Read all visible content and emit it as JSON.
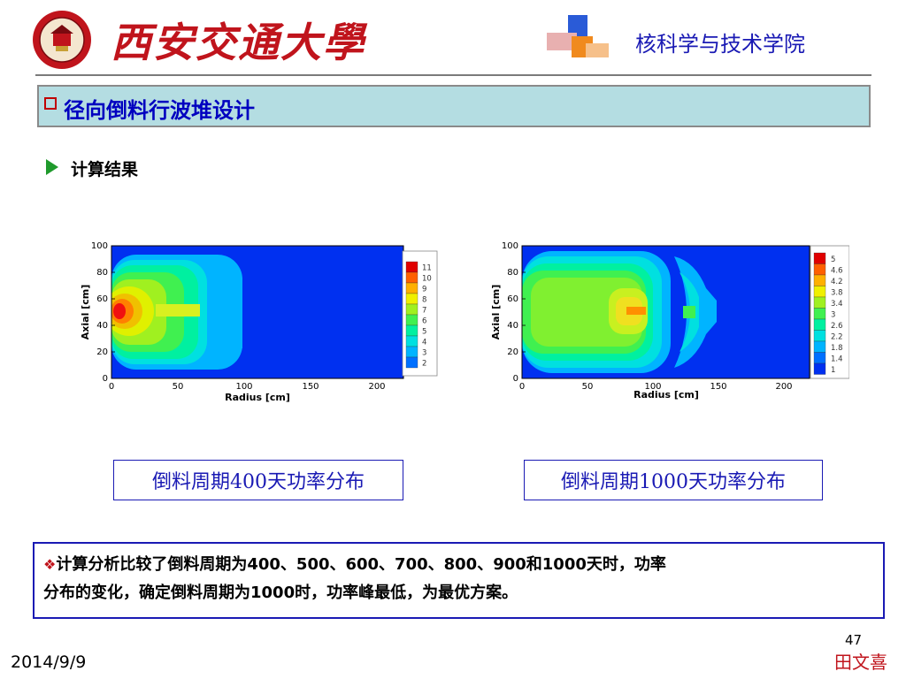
{
  "header": {
    "university_name": "西安交通大學",
    "college": "核科学与技术学院"
  },
  "colors": {
    "title_bar": "#b4dde2",
    "title_text": "#0000c0",
    "brand_red": "#c0141c",
    "caption_blue": "#1a1ab4"
  },
  "slide": {
    "title": "径向倒料行波堆设计",
    "subheading": "计算结果",
    "conclusion_prefix": "❖",
    "conclusion_line1": "计算分析比较了倒料周期为400、500、600、700、800、900和1000天时，功率",
    "conclusion_line2": "分布的变化，确定倒料周期为1000时，功率峰最低，为最优方案。",
    "page_number": "47",
    "author": "田文喜",
    "date": "2014/9/9"
  },
  "plots": [
    {
      "caption": "倒料周期400天功率分布",
      "xlabel": "Radius [cm]",
      "ylabel": "Axial [cm]",
      "xticks": [
        "0",
        "50",
        "100",
        "150",
        "200"
      ],
      "yticks": [
        "0",
        "20",
        "40",
        "60",
        "80",
        "100"
      ],
      "legend_levels": [
        "11",
        "10",
        "9",
        "8",
        "7",
        "6",
        "5",
        "4",
        "3",
        "2"
      ]
    },
    {
      "caption": "倒料周期1000天功率分布",
      "xlabel": "Radius [cm]",
      "ylabel": "Axial [cm]",
      "xticks": [
        "0",
        "50",
        "100",
        "150",
        "200"
      ],
      "yticks": [
        "0",
        "20",
        "40",
        "60",
        "80",
        "100"
      ],
      "legend_levels": [
        "5",
        "4.6",
        "4.2",
        "3.8",
        "3.4",
        "3",
        "2.6",
        "2.2",
        "1.8",
        "1.4",
        "1"
      ]
    }
  ]
}
